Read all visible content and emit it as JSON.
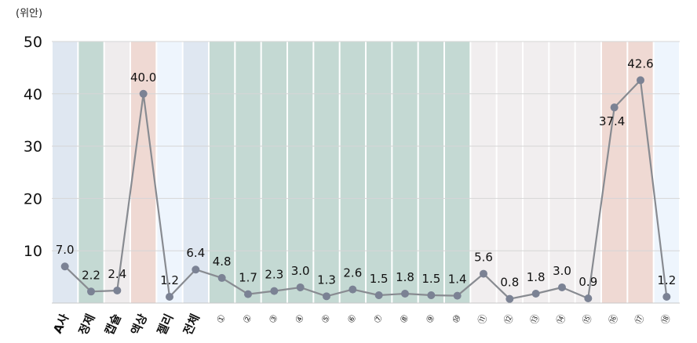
{
  "chart_data": {
    "type": "line",
    "title": "",
    "unit_label": "(위안)",
    "xlabel": "",
    "ylabel": "",
    "ylim": [
      0,
      50
    ],
    "yticks": [
      "10",
      "20",
      "30",
      "40",
      "50"
    ],
    "grid": true,
    "categories": [
      "A사",
      "정제",
      "캡슐",
      "액상",
      "젤리",
      "전체",
      "①",
      "②",
      "③",
      "④",
      "⑤",
      "⑥",
      "⑦",
      "⑧",
      "⑨",
      "⑩",
      "⑪",
      "⑫",
      "⑬",
      "⑭",
      "⑮",
      "⑯",
      "⑰",
      "⑱"
    ],
    "values": [
      7.0,
      2.2,
      2.4,
      40.0,
      1.2,
      6.4,
      4.8,
      1.7,
      2.3,
      3.0,
      1.3,
      2.6,
      1.5,
      1.8,
      1.5,
      1.4,
      5.6,
      0.8,
      1.8,
      3.0,
      0.9,
      37.4,
      42.6,
      1.2
    ],
    "value_labels": [
      "7.0",
      "2.2",
      "2.4",
      "40.0",
      "1.2",
      "6.4",
      "4.8",
      "1.7",
      "2.3",
      "3.0",
      "1.3",
      "2.6",
      "1.5",
      "1.8",
      "1.5",
      "1.4",
      "5.6",
      "0.8",
      "1.8",
      "3.0",
      "0.9",
      "37.4",
      "42.6",
      "1.2"
    ],
    "band_colors": [
      "#dfe7f1",
      "#c4d9d3",
      "#efeced",
      "#efd9d3",
      "#eef5fd",
      "#dfe7f1",
      "#c4d9d3",
      "#c4d9d3",
      "#c4d9d3",
      "#c4d9d3",
      "#c4d9d3",
      "#c4d9d3",
      "#c4d9d3",
      "#c4d9d3",
      "#c4d9d3",
      "#c4d9d3",
      "#f1eeef",
      "#f1eeef",
      "#f1eeef",
      "#f1eeef",
      "#f1eeef",
      "#efd9d3",
      "#efd9d3",
      "#eef5fd"
    ],
    "line_color": "#888b91",
    "marker_color": "#7b8294"
  }
}
